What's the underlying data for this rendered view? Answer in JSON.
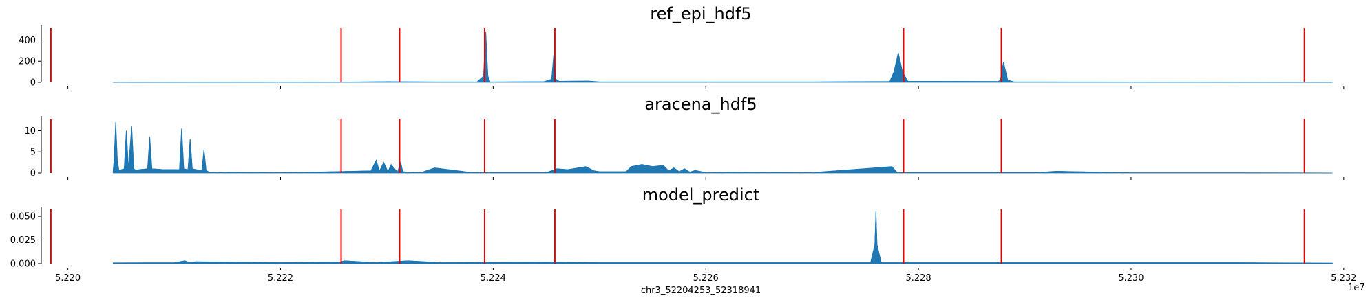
{
  "chart_data": [
    {
      "type": "area",
      "title": "ref_epi_hdf5",
      "x_range": [
        52197500,
        52321500
      ],
      "ylim": [
        0,
        520
      ],
      "yticks": [
        0,
        200,
        400
      ],
      "ytick_labels": [
        "0",
        "200",
        "400"
      ],
      "color": "#1f77b4",
      "x": [
        52204253,
        52205000,
        52206000,
        52210000,
        52220000,
        52225000,
        52230000,
        52235000,
        52238500,
        52239100,
        52239300,
        52239500,
        52239700,
        52240000,
        52244800,
        52245500,
        52245700,
        52245900,
        52246200,
        52249000,
        52250000,
        52270000,
        52277300,
        52277700,
        52278100,
        52278500,
        52279000,
        52287500,
        52287700,
        52288000,
        52288400,
        52289000,
        52300000,
        52310000,
        52318941
      ],
      "y": [
        0,
        3,
        1,
        2,
        3,
        2,
        6,
        4,
        5,
        60,
        480,
        60,
        5,
        4,
        6,
        30,
        260,
        30,
        10,
        12,
        4,
        4,
        8,
        100,
        280,
        100,
        10,
        8,
        20,
        190,
        20,
        4,
        3,
        2,
        0
      ]
    },
    {
      "type": "area",
      "title": "aracena_hdf5",
      "x_range": [
        52197500,
        52321500
      ],
      "ylim": [
        0,
        13
      ],
      "yticks": [
        0,
        5,
        10
      ],
      "ytick_labels": [
        "0",
        "5",
        "10"
      ],
      "color": "#1f77b4",
      "x": [
        52204253,
        52204350,
        52204500,
        52204650,
        52204800,
        52205300,
        52205500,
        52205700,
        52206000,
        52206200,
        52206400,
        52206700,
        52207500,
        52207700,
        52207900,
        52209000,
        52210500,
        52210700,
        52210900,
        52211300,
        52211500,
        52211700,
        52212600,
        52212800,
        52213000,
        52213300,
        52213800,
        52214100,
        52214400,
        52215000,
        52220000,
        52223000,
        52228500,
        52229000,
        52229300,
        52229700,
        52230100,
        52230400,
        52231000,
        52231300,
        52231500,
        52232000,
        52232600,
        52232900,
        52233200,
        52234500,
        52238000,
        52241000,
        52245000,
        52246000,
        52247000,
        52248000,
        52248700,
        52249500,
        52250000,
        52252500,
        52253000,
        52254000,
        52255000,
        52256000,
        52256500,
        52257000,
        52257500,
        52258000,
        52258500,
        52259000,
        52260000,
        52262000,
        52270000,
        52277500,
        52278000,
        52280000,
        52291000,
        52293000,
        52300000,
        52310000,
        52318941
      ],
      "y": [
        0.3,
        3,
        12,
        3,
        0.6,
        1,
        10,
        1,
        11,
        1,
        0.6,
        0.8,
        1,
        8.5,
        1,
        0.8,
        0.8,
        10.5,
        1,
        0.8,
        8,
        1,
        0.5,
        5.5,
        0.6,
        0.2,
        0.1,
        0.2,
        0.1,
        0.2,
        0.1,
        0.2,
        0.5,
        3,
        0.4,
        2.5,
        0.3,
        2,
        0.2,
        2.5,
        0.3,
        0.2,
        0.1,
        0.2,
        0.1,
        1.2,
        0.1,
        0.1,
        0.1,
        1,
        0.8,
        1.2,
        1.5,
        0.5,
        0.3,
        0.3,
        1.5,
        2,
        1.5,
        1.8,
        0.5,
        1.2,
        0.3,
        1,
        0.2,
        0.6,
        0.1,
        0.2,
        0.1,
        1.5,
        0.1,
        0.1,
        0.1,
        0.4,
        0.05,
        0.05,
        0
      ]
    },
    {
      "type": "area",
      "title": "model_predict",
      "x_range": [
        52197500,
        52321500
      ],
      "ylim": [
        0,
        0.058
      ],
      "yticks": [
        0,
        0.025,
        0.05
      ],
      "ytick_labels": [
        "0.000",
        "0.025",
        "0.050"
      ],
      "color": "#1f77b4",
      "xlabel": "chr3_52204253_52318941",
      "xticks": [
        52200000,
        52220000,
        52240000,
        52260000,
        52280000,
        52300000,
        52320000
      ],
      "xtick_labels": [
        "5.220",
        "5.222",
        "5.224",
        "5.226",
        "5.228",
        "5.230",
        "5.232"
      ],
      "x_offset_label": "1e7",
      "x": [
        52204253,
        52210000,
        52211000,
        52211500,
        52212000,
        52220000,
        52225500,
        52226000,
        52229000,
        52232000,
        52235000,
        52245000,
        52250000,
        52260000,
        52275500,
        52275900,
        52276000,
        52276100,
        52276500,
        52285000,
        52300000,
        52310000,
        52318941
      ],
      "y": [
        0.0008,
        0.001,
        0.003,
        0.001,
        0.002,
        0.001,
        0.0015,
        0.003,
        0.001,
        0.003,
        0.001,
        0.0015,
        0.001,
        0.001,
        0.001,
        0.02,
        0.055,
        0.02,
        0.001,
        0.001,
        0.001,
        0.001,
        0.0005
      ]
    }
  ],
  "markers": {
    "color": "#e60000",
    "positions": [
      52198400,
      52225700,
      52231200,
      52239200,
      52245800,
      52278600,
      52287800,
      52316300
    ]
  }
}
